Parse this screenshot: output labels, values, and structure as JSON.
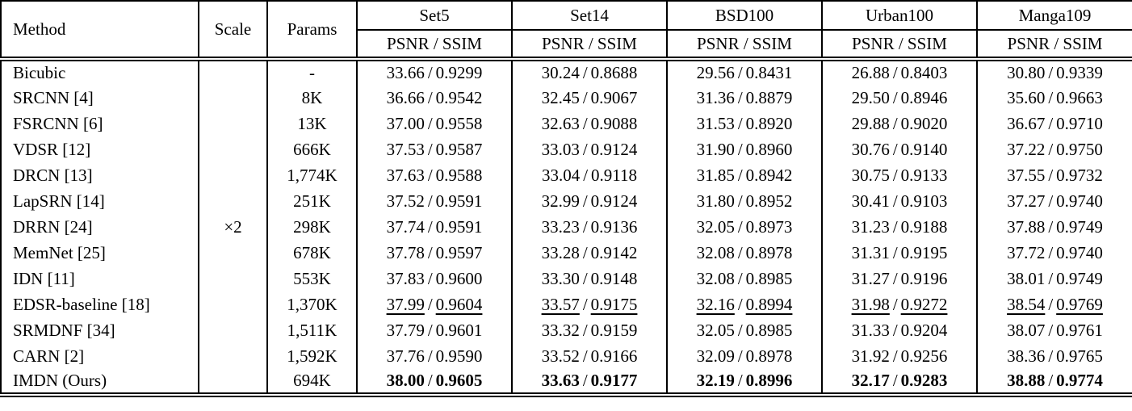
{
  "table": {
    "header": {
      "method": "Method",
      "scale": "Scale",
      "params": "Params",
      "datasets": [
        "Set5",
        "Set14",
        "BSD100",
        "Urban100",
        "Manga109"
      ],
      "metric": "PSNR / SSIM"
    },
    "scale_value": "×2",
    "value_separator": "/",
    "text_color": "#000000",
    "background_color": "#ffffff",
    "rows": [
      {
        "method": "Bicubic",
        "params": "-",
        "style": "normal",
        "values": [
          [
            "33.66",
            "0.9299"
          ],
          [
            "30.24",
            "0.8688"
          ],
          [
            "29.56",
            "0.8431"
          ],
          [
            "26.88",
            "0.8403"
          ],
          [
            "30.80",
            "0.9339"
          ]
        ]
      },
      {
        "method": "SRCNN [4]",
        "params": "8K",
        "style": "normal",
        "values": [
          [
            "36.66",
            "0.9542"
          ],
          [
            "32.45",
            "0.9067"
          ],
          [
            "31.36",
            "0.8879"
          ],
          [
            "29.50",
            "0.8946"
          ],
          [
            "35.60",
            "0.9663"
          ]
        ]
      },
      {
        "method": "FSRCNN [6]",
        "params": "13K",
        "style": "normal",
        "values": [
          [
            "37.00",
            "0.9558"
          ],
          [
            "32.63",
            "0.9088"
          ],
          [
            "31.53",
            "0.8920"
          ],
          [
            "29.88",
            "0.9020"
          ],
          [
            "36.67",
            "0.9710"
          ]
        ]
      },
      {
        "method": "VDSR [12]",
        "params": "666K",
        "style": "normal",
        "values": [
          [
            "37.53",
            "0.9587"
          ],
          [
            "33.03",
            "0.9124"
          ],
          [
            "31.90",
            "0.8960"
          ],
          [
            "30.76",
            "0.9140"
          ],
          [
            "37.22",
            "0.9750"
          ]
        ]
      },
      {
        "method": "DRCN [13]",
        "params": "1,774K",
        "style": "normal",
        "values": [
          [
            "37.63",
            "0.9588"
          ],
          [
            "33.04",
            "0.9118"
          ],
          [
            "31.85",
            "0.8942"
          ],
          [
            "30.75",
            "0.9133"
          ],
          [
            "37.55",
            "0.9732"
          ]
        ]
      },
      {
        "method": "LapSRN [14]",
        "params": "251K",
        "style": "normal",
        "values": [
          [
            "37.52",
            "0.9591"
          ],
          [
            "32.99",
            "0.9124"
          ],
          [
            "31.80",
            "0.8952"
          ],
          [
            "30.41",
            "0.9103"
          ],
          [
            "37.27",
            "0.9740"
          ]
        ]
      },
      {
        "method": "DRRN [24]",
        "params": "298K",
        "style": "normal",
        "values": [
          [
            "37.74",
            "0.9591"
          ],
          [
            "33.23",
            "0.9136"
          ],
          [
            "32.05",
            "0.8973"
          ],
          [
            "31.23",
            "0.9188"
          ],
          [
            "37.88",
            "0.9749"
          ]
        ]
      },
      {
        "method": "MemNet [25]",
        "params": "678K",
        "style": "normal",
        "values": [
          [
            "37.78",
            "0.9597"
          ],
          [
            "33.28",
            "0.9142"
          ],
          [
            "32.08",
            "0.8978"
          ],
          [
            "31.31",
            "0.9195"
          ],
          [
            "37.72",
            "0.9740"
          ]
        ]
      },
      {
        "method": "IDN [11]",
        "params": "553K",
        "style": "normal",
        "values": [
          [
            "37.83",
            "0.9600"
          ],
          [
            "33.30",
            "0.9148"
          ],
          [
            "32.08",
            "0.8985"
          ],
          [
            "31.27",
            "0.9196"
          ],
          [
            "38.01",
            "0.9749"
          ]
        ]
      },
      {
        "method": "EDSR-baseline [18]",
        "params": "1,370K",
        "style": "underline",
        "values": [
          [
            "37.99",
            "0.9604"
          ],
          [
            "33.57",
            "0.9175"
          ],
          [
            "32.16",
            "0.8994"
          ],
          [
            "31.98",
            "0.9272"
          ],
          [
            "38.54",
            "0.9769"
          ]
        ]
      },
      {
        "method": "SRMDNF [34]",
        "params": "1,511K",
        "style": "normal",
        "values": [
          [
            "37.79",
            "0.9601"
          ],
          [
            "33.32",
            "0.9159"
          ],
          [
            "32.05",
            "0.8985"
          ],
          [
            "31.33",
            "0.9204"
          ],
          [
            "38.07",
            "0.9761"
          ]
        ]
      },
      {
        "method": "CARN [2]",
        "params": "1,592K",
        "style": "normal",
        "values": [
          [
            "37.76",
            "0.9590"
          ],
          [
            "33.52",
            "0.9166"
          ],
          [
            "32.09",
            "0.8978"
          ],
          [
            "31.92",
            "0.9256"
          ],
          [
            "38.36",
            "0.9765"
          ]
        ]
      },
      {
        "method": "IMDN (Ours)",
        "params": "694K",
        "style": "bold",
        "values": [
          [
            "38.00",
            "0.9605"
          ],
          [
            "33.63",
            "0.9177"
          ],
          [
            "32.19",
            "0.8996"
          ],
          [
            "32.17",
            "0.9283"
          ],
          [
            "38.88",
            "0.9774"
          ]
        ]
      }
    ]
  }
}
